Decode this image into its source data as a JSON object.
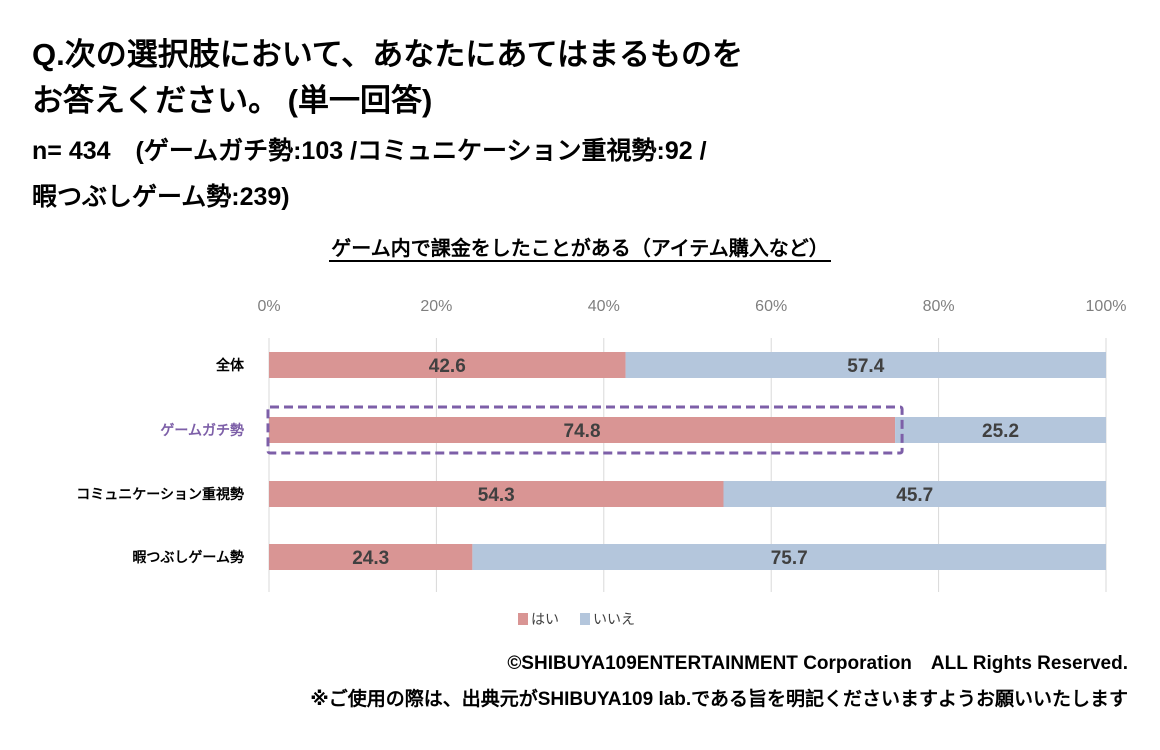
{
  "header": {
    "question_line1": "Q.次の選択肢において、あなたにあてはまるものを",
    "question_line2": "お答えください。 (単一回答)",
    "sample_line1": "n= 434　(ゲームガチ勢:103 /コミュニケーション重視勢:92 /",
    "sample_line2": "暇つぶしゲーム勢:239)"
  },
  "chart_data": {
    "type": "bar",
    "orientation": "horizontal",
    "stacked": true,
    "title": "ゲーム内で課金をしたことがある（アイテム購入など）",
    "categories": [
      "全体",
      "ゲームガチ勢",
      "コミュニケーション重視勢",
      "暇つぶしゲーム勢"
    ],
    "highlighted_category": "ゲームガチ勢",
    "series": [
      {
        "name": "はい",
        "values": [
          42.6,
          74.8,
          54.3,
          24.3
        ],
        "color": "#d99594"
      },
      {
        "name": "いいえ",
        "values": [
          57.4,
          25.2,
          45.7,
          75.7
        ],
        "color": "#b4c6dc"
      }
    ],
    "xlim": [
      0,
      100
    ],
    "xticks": [
      "0%",
      "20%",
      "40%",
      "60%",
      "80%",
      "100%"
    ],
    "grid": true,
    "legend_position": "bottom",
    "highlight_color": "#7d5fa8"
  },
  "footer": {
    "copyright": "©SHIBUYA109ENTERTAINMENT Corporation　ALL Rights Reserved.",
    "notice": "※ご使用の際は、出典元がSHIBUYA109 lab.である旨を明記くださいますようお願いいたします"
  }
}
